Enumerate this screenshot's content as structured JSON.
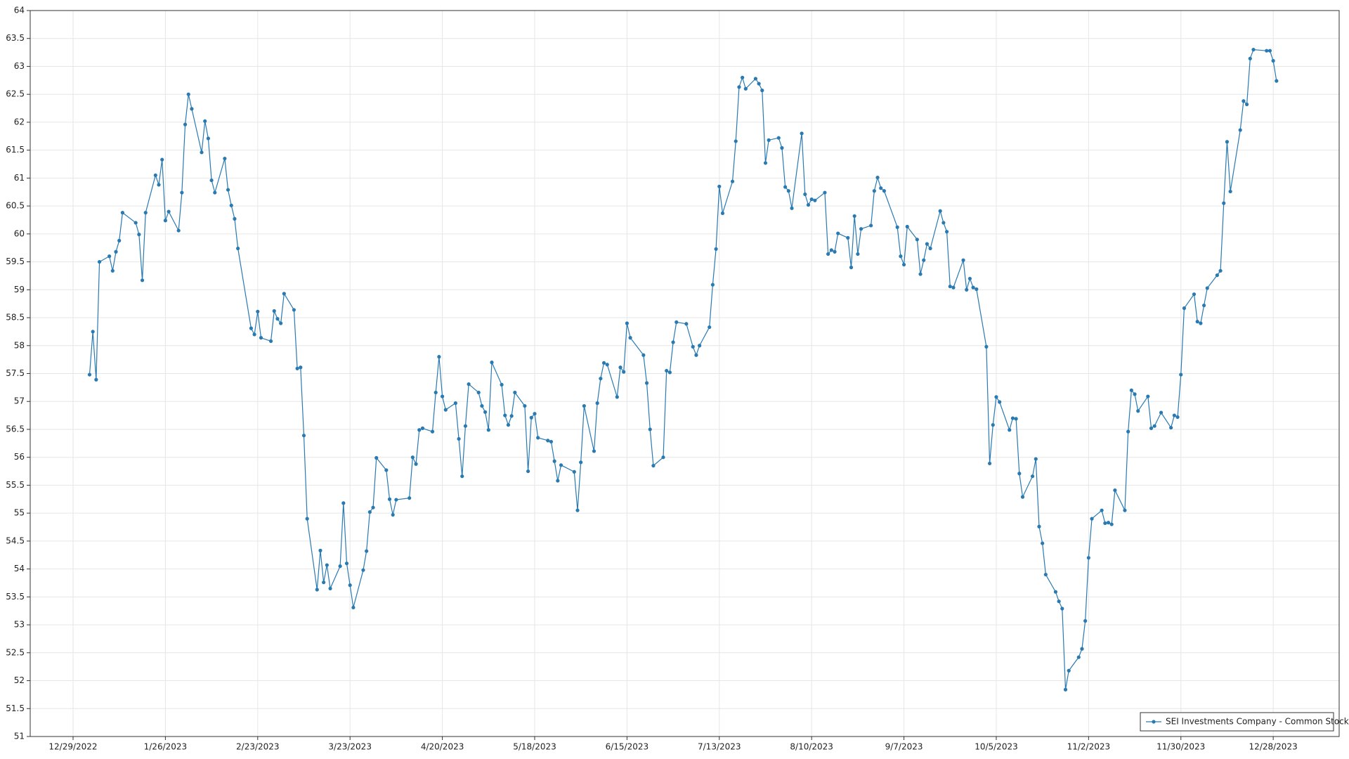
{
  "chart_data": {
    "type": "line",
    "x": [
      "1/3/2023",
      "1/4/2023",
      "1/5/2023",
      "1/6/2023",
      "1/9/2023",
      "1/10/2023",
      "1/11/2023",
      "1/12/2023",
      "1/13/2023",
      "1/17/2023",
      "1/18/2023",
      "1/19/2023",
      "1/20/2023",
      "1/23/2023",
      "1/24/2023",
      "1/25/2023",
      "1/26/2023",
      "1/27/2023",
      "1/30/2023",
      "1/31/2023",
      "2/1/2023",
      "2/2/2023",
      "2/3/2023",
      "2/6/2023",
      "2/7/2023",
      "2/8/2023",
      "2/9/2023",
      "2/10/2023",
      "2/13/2023",
      "2/14/2023",
      "2/15/2023",
      "2/16/2023",
      "2/17/2023",
      "2/21/2023",
      "2/22/2023",
      "2/23/2023",
      "2/24/2023",
      "2/27/2023",
      "2/28/2023",
      "3/1/2023",
      "3/2/2023",
      "3/3/2023",
      "3/6/2023",
      "3/7/2023",
      "3/8/2023",
      "3/9/2023",
      "3/10/2023",
      "3/13/2023",
      "3/14/2023",
      "3/15/2023",
      "3/16/2023",
      "3/17/2023",
      "3/20/2023",
      "3/21/2023",
      "3/22/2023",
      "3/23/2023",
      "3/24/2023",
      "3/27/2023",
      "3/28/2023",
      "3/29/2023",
      "3/30/2023",
      "3/31/2023",
      "4/3/2023",
      "4/4/2023",
      "4/5/2023",
      "4/6/2023",
      "4/10/2023",
      "4/11/2023",
      "4/12/2023",
      "4/13/2023",
      "4/14/2023",
      "4/17/2023",
      "4/18/2023",
      "4/19/2023",
      "4/20/2023",
      "4/21/2023",
      "4/24/2023",
      "4/25/2023",
      "4/26/2023",
      "4/27/2023",
      "4/28/2023",
      "5/1/2023",
      "5/2/2023",
      "5/3/2023",
      "5/4/2023",
      "5/5/2023",
      "5/8/2023",
      "5/9/2023",
      "5/10/2023",
      "5/11/2023",
      "5/12/2023",
      "5/15/2023",
      "5/16/2023",
      "5/17/2023",
      "5/18/2023",
      "5/19/2023",
      "5/22/2023",
      "5/23/2023",
      "5/24/2023",
      "5/25/2023",
      "5/26/2023",
      "5/30/2023",
      "5/31/2023",
      "6/1/2023",
      "6/2/2023",
      "6/5/2023",
      "6/6/2023",
      "6/7/2023",
      "6/8/2023",
      "6/9/2023",
      "6/12/2023",
      "6/13/2023",
      "6/14/2023",
      "6/15/2023",
      "6/16/2023",
      "6/20/2023",
      "6/21/2023",
      "6/22/2023",
      "6/23/2023",
      "6/26/2023",
      "6/27/2023",
      "6/28/2023",
      "6/29/2023",
      "6/30/2023",
      "7/3/2023",
      "7/5/2023",
      "7/6/2023",
      "7/7/2023",
      "7/10/2023",
      "7/11/2023",
      "7/12/2023",
      "7/13/2023",
      "7/14/2023",
      "7/17/2023",
      "7/18/2023",
      "7/19/2023",
      "7/20/2023",
      "7/21/2023",
      "7/24/2023",
      "7/25/2023",
      "7/26/2023",
      "7/27/2023",
      "7/28/2023",
      "7/31/2023",
      "8/1/2023",
      "8/2/2023",
      "8/3/2023",
      "8/4/2023",
      "8/7/2023",
      "8/8/2023",
      "8/9/2023",
      "8/10/2023",
      "8/11/2023",
      "8/14/2023",
      "8/15/2023",
      "8/16/2023",
      "8/17/2023",
      "8/18/2023",
      "8/21/2023",
      "8/22/2023",
      "8/23/2023",
      "8/24/2023",
      "8/25/2023",
      "8/28/2023",
      "8/29/2023",
      "8/30/2023",
      "8/31/2023",
      "9/1/2023",
      "9/5/2023",
      "9/6/2023",
      "9/7/2023",
      "9/8/2023",
      "9/11/2023",
      "9/12/2023",
      "9/13/2023",
      "9/14/2023",
      "9/15/2023",
      "9/18/2023",
      "9/19/2023",
      "9/20/2023",
      "9/21/2023",
      "9/22/2023",
      "9/25/2023",
      "9/26/2023",
      "9/27/2023",
      "9/28/2023",
      "9/29/2023",
      "10/2/2023",
      "10/3/2023",
      "10/4/2023",
      "10/5/2023",
      "10/6/2023",
      "10/9/2023",
      "10/10/2023",
      "10/11/2023",
      "10/12/2023",
      "10/13/2023",
      "10/16/2023",
      "10/17/2023",
      "10/18/2023",
      "10/19/2023",
      "10/20/2023",
      "10/23/2023",
      "10/24/2023",
      "10/25/2023",
      "10/26/2023",
      "10/27/2023",
      "10/30/2023",
      "10/31/2023",
      "11/1/2023",
      "11/2/2023",
      "11/3/2023",
      "11/6/2023",
      "11/7/2023",
      "11/8/2023",
      "11/9/2023",
      "11/10/2023",
      "11/13/2023",
      "11/14/2023",
      "11/15/2023",
      "11/16/2023",
      "11/17/2023",
      "11/20/2023",
      "11/21/2023",
      "11/22/2023",
      "11/24/2023",
      "11/27/2023",
      "11/28/2023",
      "11/29/2023",
      "11/30/2023",
      "12/1/2023",
      "12/4/2023",
      "12/5/2023",
      "12/6/2023",
      "12/7/2023",
      "12/8/2023",
      "12/11/2023",
      "12/12/2023",
      "12/13/2023",
      "12/14/2023",
      "12/15/2023",
      "12/18/2023",
      "12/19/2023",
      "12/20/2023",
      "12/21/2023",
      "12/22/2023",
      "12/26/2023",
      "12/27/2023",
      "12/28/2023",
      "12/29/2023"
    ],
    "series": [
      {
        "name": "SEI Investments Company - Common Stock",
        "color": "#2a7ab2",
        "values": [
          57.48,
          58.25,
          57.39,
          59.5,
          59.6,
          59.34,
          59.68,
          59.88,
          60.38,
          60.2,
          59.99,
          59.17,
          60.38,
          61.05,
          60.88,
          61.33,
          60.24,
          60.4,
          60.06,
          60.74,
          61.96,
          62.5,
          62.24,
          61.46,
          62.02,
          61.71,
          60.96,
          60.74,
          61.35,
          60.79,
          60.51,
          60.27,
          59.74,
          58.31,
          58.2,
          58.61,
          58.14,
          58.08,
          58.62,
          58.48,
          58.4,
          58.93,
          58.64,
          57.59,
          57.61,
          56.39,
          54.9,
          53.63,
          54.33,
          53.76,
          54.07,
          53.65,
          54.05,
          55.18,
          54.1,
          53.71,
          53.31,
          53.98,
          54.32,
          55.02,
          55.1,
          55.99,
          55.77,
          55.25,
          54.97,
          55.24,
          55.27,
          56.0,
          55.88,
          56.49,
          56.52,
          56.46,
          57.16,
          57.8,
          57.09,
          56.85,
          56.97,
          56.33,
          55.66,
          56.56,
          57.31,
          57.16,
          56.92,
          56.81,
          56.49,
          57.7,
          57.3,
          56.75,
          56.58,
          56.74,
          57.16,
          56.92,
          55.75,
          56.71,
          56.78,
          56.35,
          56.3,
          56.28,
          55.93,
          55.58,
          55.86,
          55.74,
          55.05,
          55.91,
          56.92,
          56.11,
          56.97,
          57.41,
          57.69,
          57.66,
          57.08,
          57.61,
          57.53,
          58.4,
          58.14,
          57.83,
          57.33,
          56.5,
          55.85,
          56.0,
          57.55,
          57.52,
          58.06,
          58.42,
          58.39,
          57.98,
          57.83,
          58.0,
          58.33,
          59.09,
          59.73,
          60.85,
          60.37,
          60.94,
          61.66,
          62.63,
          62.8,
          62.6,
          62.78,
          62.69,
          62.57,
          61.27,
          61.68,
          61.72,
          61.54,
          60.84,
          60.77,
          60.46,
          61.8,
          60.71,
          60.52,
          60.62,
          60.6,
          60.74,
          59.64,
          59.71,
          59.68,
          60.01,
          59.93,
          59.4,
          60.32,
          59.64,
          60.09,
          60.15,
          60.77,
          61.01,
          60.82,
          60.77,
          60.12,
          59.6,
          59.45,
          60.13,
          59.9,
          59.28,
          59.53,
          59.82,
          59.74,
          60.41,
          60.2,
          60.04,
          59.06,
          59.04,
          59.53,
          59.0,
          59.2,
          59.04,
          59.01,
          57.98,
          55.89,
          56.58,
          57.08,
          56.99,
          56.49,
          56.7,
          56.69,
          55.71,
          55.29,
          55.66,
          55.97,
          54.76,
          54.46,
          53.9,
          53.59,
          53.42,
          53.29,
          51.84,
          52.18,
          52.42,
          52.57,
          53.07,
          54.2,
          54.9,
          55.05,
          54.82,
          54.83,
          54.8,
          55.41,
          55.05,
          56.46,
          57.2,
          57.13,
          56.83,
          57.09,
          56.52,
          56.56,
          56.8,
          56.53,
          56.75,
          56.72,
          57.48,
          58.67,
          58.92,
          58.43,
          58.4,
          58.72,
          59.03,
          59.26,
          59.34,
          60.55,
          61.65,
          60.76,
          61.86,
          62.38,
          62.32,
          63.14,
          63.3,
          63.28,
          63.28,
          63.1,
          62.74
        ]
      }
    ],
    "xlim": [
      "12/16/2022",
      "1/17/2024"
    ],
    "xticks": [
      "12/29/2022",
      "1/26/2023",
      "2/23/2023",
      "3/23/2023",
      "4/20/2023",
      "5/18/2023",
      "6/15/2023",
      "7/13/2023",
      "8/10/2023",
      "9/7/2023",
      "10/5/2023",
      "11/2/2023",
      "11/30/2023",
      "12/28/2023"
    ],
    "ylim": [
      51,
      64
    ],
    "yticks": [
      51,
      51.5,
      52,
      52.5,
      53,
      53.5,
      54,
      54.5,
      55,
      55.5,
      56,
      56.5,
      57,
      57.5,
      58,
      58.5,
      59,
      59.5,
      60,
      60.5,
      61,
      61.5,
      62,
      62.5,
      63,
      63.5,
      64
    ],
    "grid": true,
    "legend": "lower right"
  }
}
